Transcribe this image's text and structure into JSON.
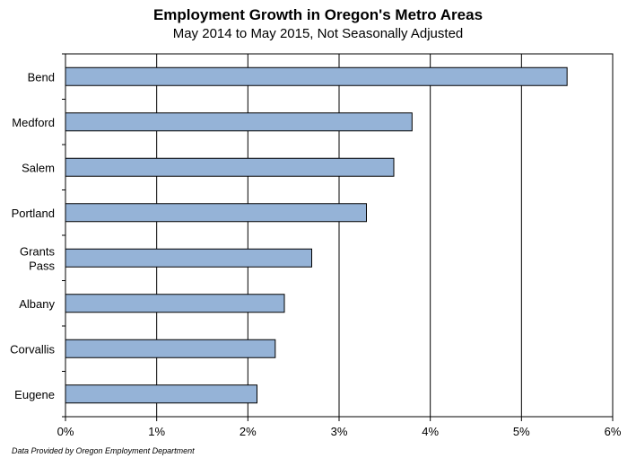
{
  "chart_data": {
    "type": "bar",
    "orientation": "horizontal",
    "title": "Employment Growth in Oregon's Metro Areas",
    "subtitle": "May 2014 to May 2015, Not Seasonally Adjusted",
    "categories": [
      [
        "Bend"
      ],
      [
        "Medford"
      ],
      [
        "Salem"
      ],
      [
        "Portland"
      ],
      [
        "Grants",
        "Pass"
      ],
      [
        "Albany"
      ],
      [
        "Corvallis"
      ],
      [
        "Eugene"
      ]
    ],
    "values": [
      5.5,
      3.8,
      3.6,
      3.3,
      2.7,
      2.4,
      2.3,
      2.1
    ],
    "xlim": [
      0,
      6
    ],
    "xticks": [
      "0%",
      "1%",
      "2%",
      "3%",
      "4%",
      "5%",
      "6%"
    ],
    "grid": "vertical",
    "bar_color": "#95b3d7",
    "source": "Data Provided by Oregon Employment Department"
  }
}
